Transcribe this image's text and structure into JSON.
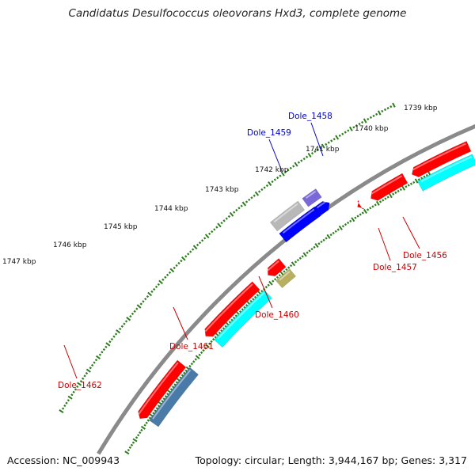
{
  "title": "Candidatus Desulfococcus oleovorans Hxd3, complete genome",
  "footer": {
    "accession": "Accession: NC_009943",
    "summary": "Topology: circular; Length: 3,944,167 bp; Genes: 3,317"
  },
  "colors": {
    "background": "#ffffff",
    "backbone": "#8a8a8a",
    "tick": "#2e7d1e",
    "reverse_label": "#cc0000",
    "forward_label": "#0000cc",
    "feature_red": "#ff0000",
    "feature_cyan": "#00ffff",
    "feature_blue": "#0000ff",
    "feature_purple": "#7b68d8",
    "feature_gray": "#b8b8b8",
    "feature_steel": "#4a7aa8",
    "feature_olive": "#b8b060"
  },
  "ruler": {
    "unit": "kbp",
    "ticks": [
      "1739 kbp",
      "1740 kbp",
      "1741 kbp",
      "1742 kbp",
      "1743 kbp",
      "1744 kbp",
      "1745 kbp",
      "1746 kbp",
      "1747 kbp"
    ]
  },
  "genes": [
    {
      "label": "Dole_1456",
      "strand": "reverse"
    },
    {
      "label": "Dole_1457",
      "strand": "reverse"
    },
    {
      "label": "Dole_1458",
      "strand": "forward"
    },
    {
      "label": "Dole_1459",
      "strand": "forward"
    },
    {
      "label": "Dole_1460",
      "strand": "reverse"
    },
    {
      "label": "Dole_1461",
      "strand": "reverse"
    },
    {
      "label": "Dole_1462",
      "strand": "reverse"
    }
  ]
}
